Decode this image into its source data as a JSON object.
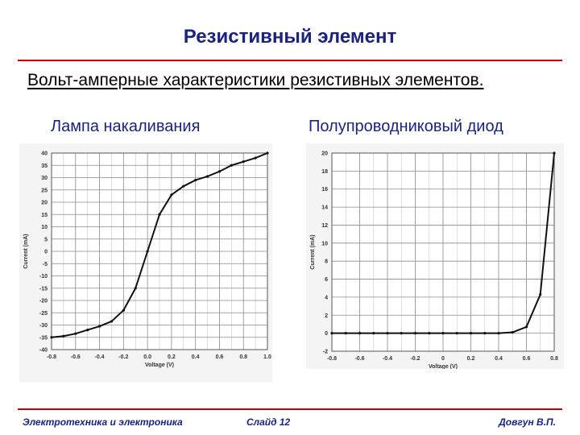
{
  "slide": {
    "title": "Резистивный элемент",
    "subtitle": "Вольт-амперные характеристики резистивных элементов.",
    "footer_left": "Электротехника и электроника",
    "footer_center": "Слайд 12",
    "footer_right": "Довгун В.П.",
    "colors": {
      "title": "#1a237e",
      "rule": "#cc0000"
    }
  },
  "chart_data": [
    {
      "type": "line",
      "panel_label": "Лампа накаливания",
      "xlabel": "Voltage (V)",
      "ylabel": "Current (mA)",
      "xlim": [
        -0.8,
        1.0
      ],
      "ylim": [
        -40,
        40
      ],
      "xticks": [
        -0.8,
        -0.6,
        -0.4,
        -0.2,
        0.0,
        0.2,
        0.4,
        0.6,
        0.8,
        1.0
      ],
      "xtick_labels": [
        "-0.8",
        "-0.6",
        "-0.4",
        "-0.2",
        "0.0",
        "0.2",
        "0.4",
        "0.6",
        "0.8",
        "1.0"
      ],
      "yticks": [
        -40,
        -35,
        -30,
        -25,
        -20,
        -15,
        -10,
        -5,
        0,
        5,
        10,
        15,
        20,
        25,
        30,
        35,
        40
      ],
      "ytick_labels": [
        "-40",
        "-35",
        "-30",
        "-25",
        "-20",
        "-15",
        "-10",
        "-5",
        "0",
        "5",
        "10",
        "15",
        "20",
        "25",
        "30",
        "35",
        "40"
      ],
      "grid": true,
      "x": [
        -0.8,
        -0.7,
        -0.6,
        -0.5,
        -0.4,
        -0.3,
        -0.2,
        -0.1,
        0.0,
        0.1,
        0.2,
        0.3,
        0.4,
        0.5,
        0.6,
        0.7,
        0.8,
        0.9,
        1.0
      ],
      "y": [
        -35,
        -34.5,
        -33.5,
        -32,
        -30.5,
        -28.5,
        -24,
        -15,
        0,
        15,
        23,
        26.5,
        29,
        30.5,
        32.5,
        35,
        36.5,
        38,
        40
      ]
    },
    {
      "type": "line",
      "panel_label": "Полупроводниковый диод",
      "xlabel": "Voltage (V)",
      "ylabel": "Current (mA)",
      "xlim": [
        -0.8,
        0.8
      ],
      "ylim": [
        -2,
        20
      ],
      "xticks": [
        -0.8,
        -0.6,
        -0.4,
        -0.2,
        0.0,
        0.2,
        0.4,
        0.6,
        0.8
      ],
      "xtick_labels": [
        "-0.8",
        "-0.6",
        "-0.4",
        "-0.2",
        "0",
        "0.2",
        "0.4",
        "0.6",
        "0.8"
      ],
      "yticks": [
        -2,
        0,
        2,
        4,
        6,
        8,
        10,
        12,
        14,
        16,
        18,
        20
      ],
      "ytick_labels": [
        "-2",
        "0",
        "2",
        "4",
        "6",
        "8",
        "10",
        "12",
        "14",
        "16",
        "18",
        "20"
      ],
      "grid": true,
      "x": [
        -0.8,
        -0.7,
        -0.6,
        -0.5,
        -0.4,
        -0.3,
        -0.2,
        -0.1,
        0.0,
        0.1,
        0.2,
        0.3,
        0.4,
        0.5,
        0.6,
        0.7,
        0.8
      ],
      "y": [
        0,
        0,
        0,
        0,
        0,
        0,
        0,
        0,
        0,
        0,
        0,
        0,
        0,
        0.1,
        0.7,
        4.3,
        20
      ]
    }
  ]
}
